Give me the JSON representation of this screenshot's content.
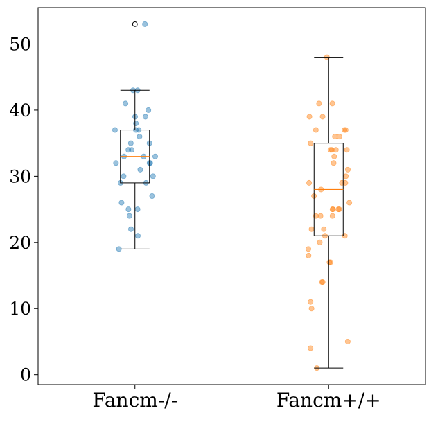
{
  "chart_data": {
    "type": "box",
    "title": "",
    "xlabel": "",
    "ylabel": "",
    "categories": [
      "Fancm-/-",
      "Fancm+/+"
    ],
    "ylim": [
      -1.5,
      55.5
    ],
    "yticks": [
      0,
      10,
      20,
      30,
      40,
      50
    ],
    "grid": false,
    "series": [
      {
        "category": "Fancm-/-",
        "color": "#1f77b4",
        "box": {
          "whisker_low": 19,
          "q1": 29,
          "median": 33,
          "q3": 37,
          "whisker_high": 43
        },
        "outliers": [
          53
        ],
        "points": [
          53,
          43,
          43,
          41,
          40,
          39,
          39,
          38,
          37,
          37,
          37,
          36,
          35,
          35,
          34,
          34,
          33,
          33,
          33,
          32,
          32,
          32,
          31,
          30,
          30,
          29,
          29,
          27,
          26,
          25,
          25,
          24,
          22,
          21,
          19
        ]
      },
      {
        "category": "Fancm+/+",
        "color": "#ff7f0e",
        "box": {
          "whisker_low": 1,
          "q1": 21,
          "median": 28,
          "q3": 35,
          "whisker_high": 48
        },
        "outliers": [],
        "points": [
          48,
          41,
          41,
          39,
          39,
          37,
          37,
          37,
          36,
          36,
          35,
          34,
          34,
          34,
          34,
          33,
          32,
          31,
          30,
          29,
          29,
          29,
          28,
          27,
          26,
          25,
          25,
          25,
          25,
          24,
          24,
          24,
          22,
          22,
          21,
          21,
          20,
          19,
          18,
          17,
          17,
          14,
          14,
          11,
          10,
          5,
          4,
          1
        ]
      }
    ]
  }
}
